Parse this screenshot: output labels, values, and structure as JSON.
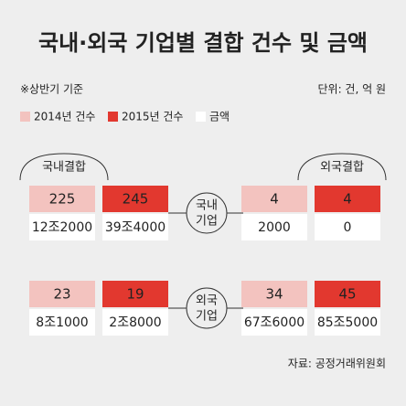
{
  "title": "국내·외국 기업별 결합 건수 및 금액",
  "note": "※상반기 기준",
  "unit": "단위: 건, 억 원",
  "legend": [
    "2014년 건수",
    "2015년 건수",
    "금액"
  ],
  "groups": [
    "국내결합",
    "외국결합"
  ],
  "rows": [
    {
      "label": [
        "국내",
        "기업"
      ],
      "cells": [
        {
          "count": 225,
          "amount": "12조2000"
        },
        {
          "count": 245,
          "amount": "39조4000"
        },
        {
          "count": 4,
          "amount": "2000"
        },
        {
          "count": 4,
          "amount": "0"
        }
      ]
    },
    {
      "label": [
        "외국",
        "기업"
      ],
      "cells": [
        {
          "count": 23,
          "amount": "8조1000"
        },
        {
          "count": 19,
          "amount": "2조8000"
        },
        {
          "count": 34,
          "amount": "67조6000"
        },
        {
          "count": 45,
          "amount": "85조5000"
        }
      ]
    }
  ],
  "source": "자료: 공정거래위원회"
}
